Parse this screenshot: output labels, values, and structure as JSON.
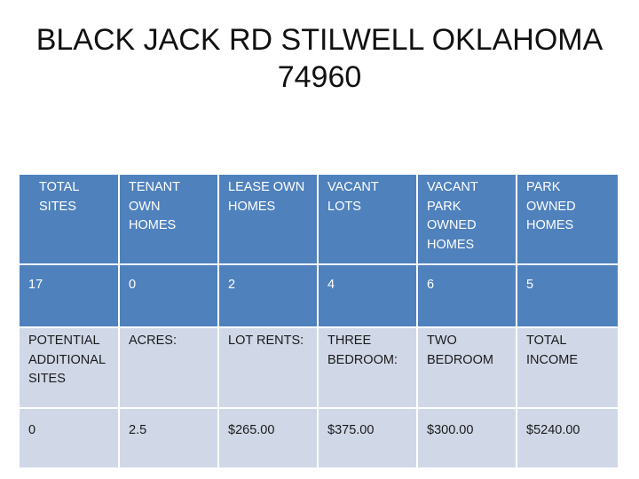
{
  "title": {
    "line1": "BLACK JACK RD STILWELL OKLAHOMA",
    "line2": "74960"
  },
  "table": {
    "rows": [
      [
        "TOTAL SITES",
        "TENANT OWN HOMES",
        "LEASE OWN HOMES",
        "VACANT LOTS",
        "VACANT PARK OWNED HOMES",
        "PARK OWNED HOMES"
      ],
      [
        "17",
        "0",
        "2",
        "4",
        "6",
        "5"
      ],
      [
        "POTENTIAL ADDITIONAL SITES",
        "ACRES:",
        "LOT RENTS:",
        "THREE BEDROOM:",
        "TWO BEDROOM",
        "TOTAL INCOME"
      ],
      [
        "0",
        "2.5",
        "$265.00",
        "$375.00",
        "$300.00",
        "$5240.00"
      ]
    ]
  },
  "colors": {
    "header_fill": "#4f81bd",
    "body_fill": "#d0d8e8",
    "header_text": "#ffffff"
  }
}
